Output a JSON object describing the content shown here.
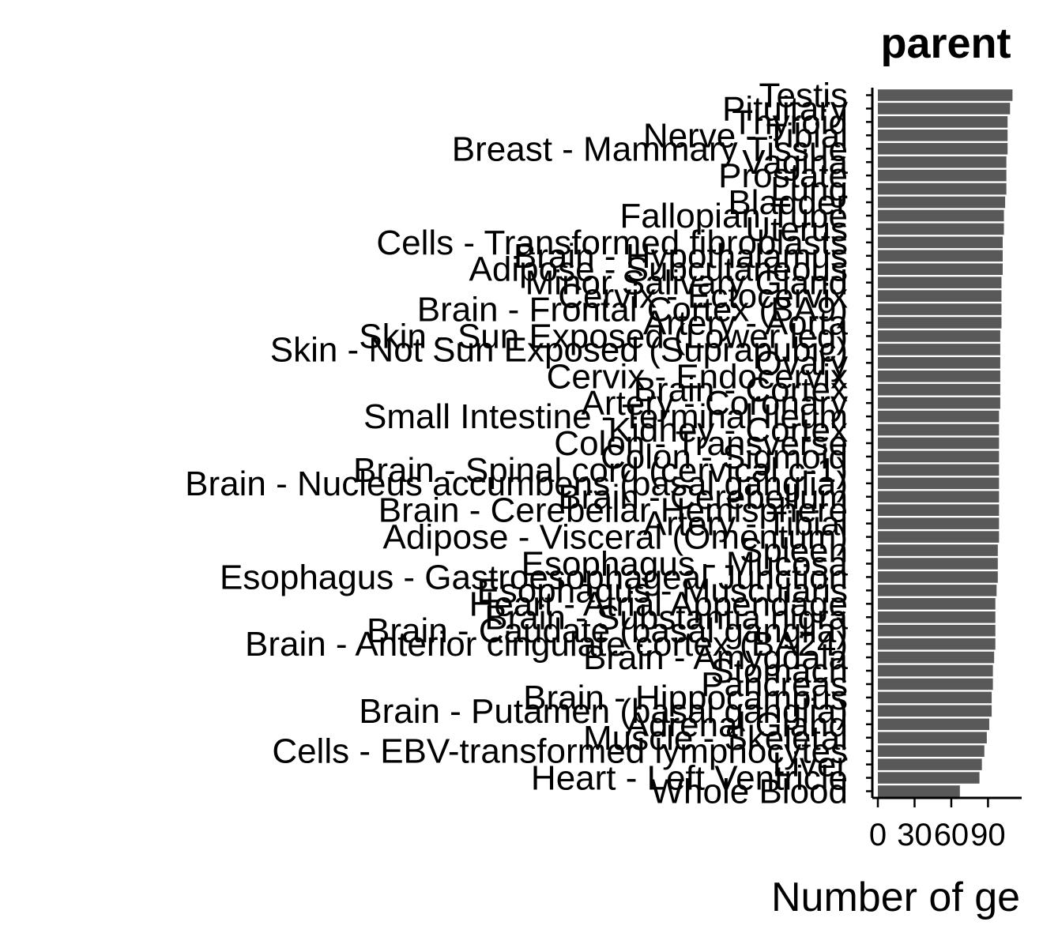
{
  "chart_data": {
    "type": "bar",
    "orientation": "horizontal",
    "title": "parent",
    "xlabel": "Number of ge",
    "ylabel": "",
    "xlim": [
      0,
      115
    ],
    "x_ticks": [
      0,
      30,
      60,
      90
    ],
    "x_tick_labels": [
      "0",
      "30",
      "60",
      "90"
    ],
    "grid": false,
    "bar_color": "#595959",
    "categories": [
      "Testis",
      "Pituitary",
      "Thyroid",
      "Nerve - Tibial",
      "Breast - Mammary Tissue",
      "Vagina",
      "Prostate",
      "Lung",
      "Bladder",
      "Fallopian Tube",
      "Uterus",
      "Cells - Transformed fibroblasts",
      "Brain - Hypothalamus",
      "Adipose - Subcutaneous",
      "Minor Salivary Gland",
      "Cervix - Ectocervix",
      "Brain - Frontal Cortex (BA9)",
      "Artery - Aorta",
      "Skin - Sun Exposed (Lower leg)",
      "Skin - Not Sun Exposed (Suprapubic)",
      "Ovary",
      "Cervix - Endocervix",
      "Brain - Cortex",
      "Artery - Coronary",
      "Small Intestine - Terminal Ileum",
      "Kidney - Cortex",
      "Colon - Transverse",
      "Colon - Sigmoid",
      "Brain - Spinal cord (cervical c-1)",
      "Brain - Nucleus accumbens (basal ganglia)",
      "Brain - Cerebellum",
      "Brain - Cerebellar Hemisphere",
      "Artery - Tibial",
      "Adipose - Visceral (Omentum)",
      "Spleen",
      "Esophagus - Mucosa",
      "Esophagus - Gastroesophageal Junction",
      "Esophagus - Muscularis",
      "Heart - Atrial Appendage",
      "Brain - Substantia nigra",
      "Brain - Caudate (basal ganglia)",
      "Brain - Anterior cingulate cortex (BA24)",
      "Brain - Amygdala",
      "Stomach",
      "Pancreas",
      "Brain - Hippocampus",
      "Brain - Putamen (basal ganglia)",
      "Adrenal Gland",
      "Muscle - Skeletal",
      "Cells - EBV-transformed lymphocytes",
      "Liver",
      "Heart - Left Ventricle",
      "Whole Blood"
    ],
    "values": [
      110,
      108,
      106,
      106,
      106,
      105,
      105,
      105,
      104,
      103,
      103,
      102,
      102,
      102,
      101,
      101,
      101,
      101,
      100,
      100,
      100,
      100,
      100,
      100,
      99,
      99,
      99,
      99,
      99,
      99,
      99,
      99,
      99,
      99,
      98,
      98,
      98,
      97,
      96,
      96,
      96,
      96,
      95,
      94,
      94,
      93,
      93,
      91,
      89,
      87,
      85,
      83,
      67
    ]
  }
}
